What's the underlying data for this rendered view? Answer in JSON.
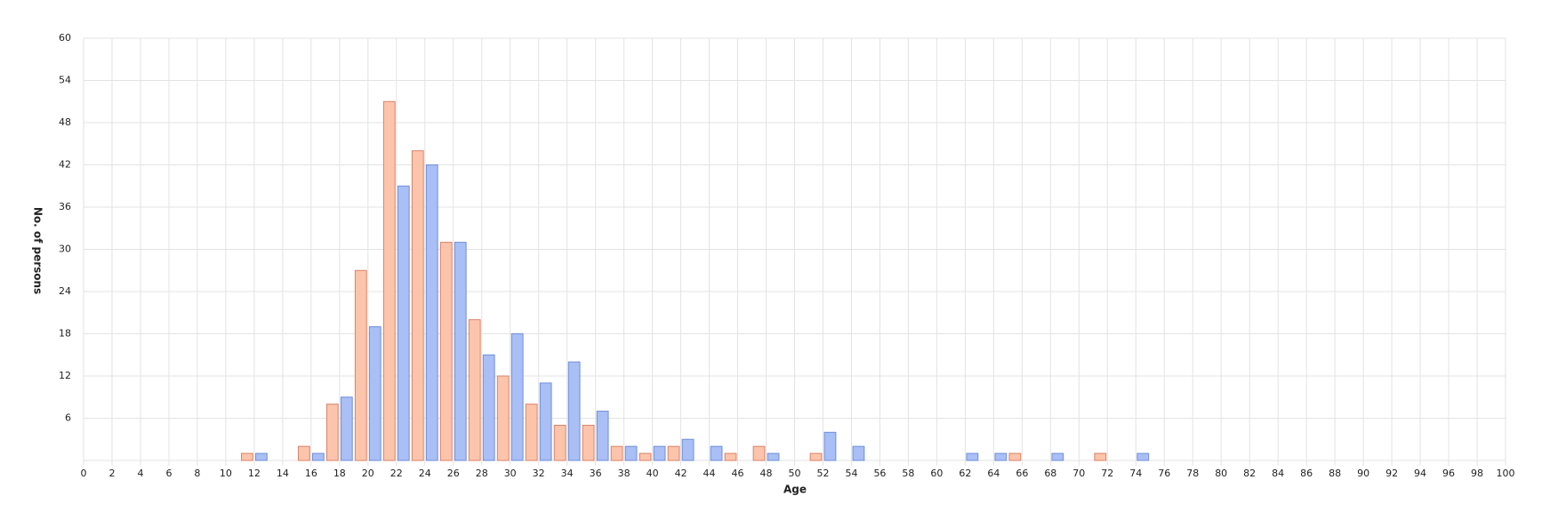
{
  "chart_data": {
    "type": "bar",
    "xlabel": "Age",
    "ylabel": "No. of persons",
    "xlim": [
      0,
      100
    ],
    "ylim": [
      0,
      60
    ],
    "xticks": [
      0,
      2,
      4,
      6,
      8,
      10,
      12,
      14,
      16,
      18,
      20,
      22,
      24,
      26,
      28,
      30,
      32,
      34,
      36,
      38,
      40,
      42,
      44,
      46,
      48,
      50,
      52,
      54,
      56,
      58,
      60,
      62,
      64,
      66,
      68,
      70,
      72,
      74,
      76,
      78,
      80,
      82,
      84,
      86,
      88,
      90,
      92,
      94,
      96,
      98,
      100
    ],
    "yticks": [
      6,
      12,
      18,
      24,
      30,
      36,
      42,
      48,
      54,
      60
    ],
    "grid": true,
    "series": [
      {
        "color": "#fcc5ab",
        "edge": "#d9826a",
        "x": [
          11,
          15,
          17,
          19,
          21,
          23,
          25,
          27,
          29,
          31,
          33,
          35,
          37,
          39,
          41,
          45,
          47,
          51,
          65,
          71
        ],
        "values": [
          1,
          2,
          8,
          27,
          51,
          44,
          31,
          20,
          12,
          8,
          5,
          5,
          2,
          1,
          2,
          1,
          2,
          1,
          1,
          1
        ]
      },
      {
        "color": "#a9bff5",
        "edge": "#6f8fd8",
        "x": [
          12,
          16,
          18,
          20,
          22,
          24,
          26,
          28,
          30,
          32,
          34,
          36,
          38,
          40,
          42,
          44,
          48,
          52,
          54,
          62,
          64,
          68,
          74
        ],
        "values": [
          1,
          1,
          9,
          19,
          39,
          42,
          31,
          15,
          18,
          11,
          14,
          7,
          2,
          2,
          3,
          2,
          1,
          4,
          2,
          1,
          1,
          1,
          1
        ]
      }
    ]
  }
}
